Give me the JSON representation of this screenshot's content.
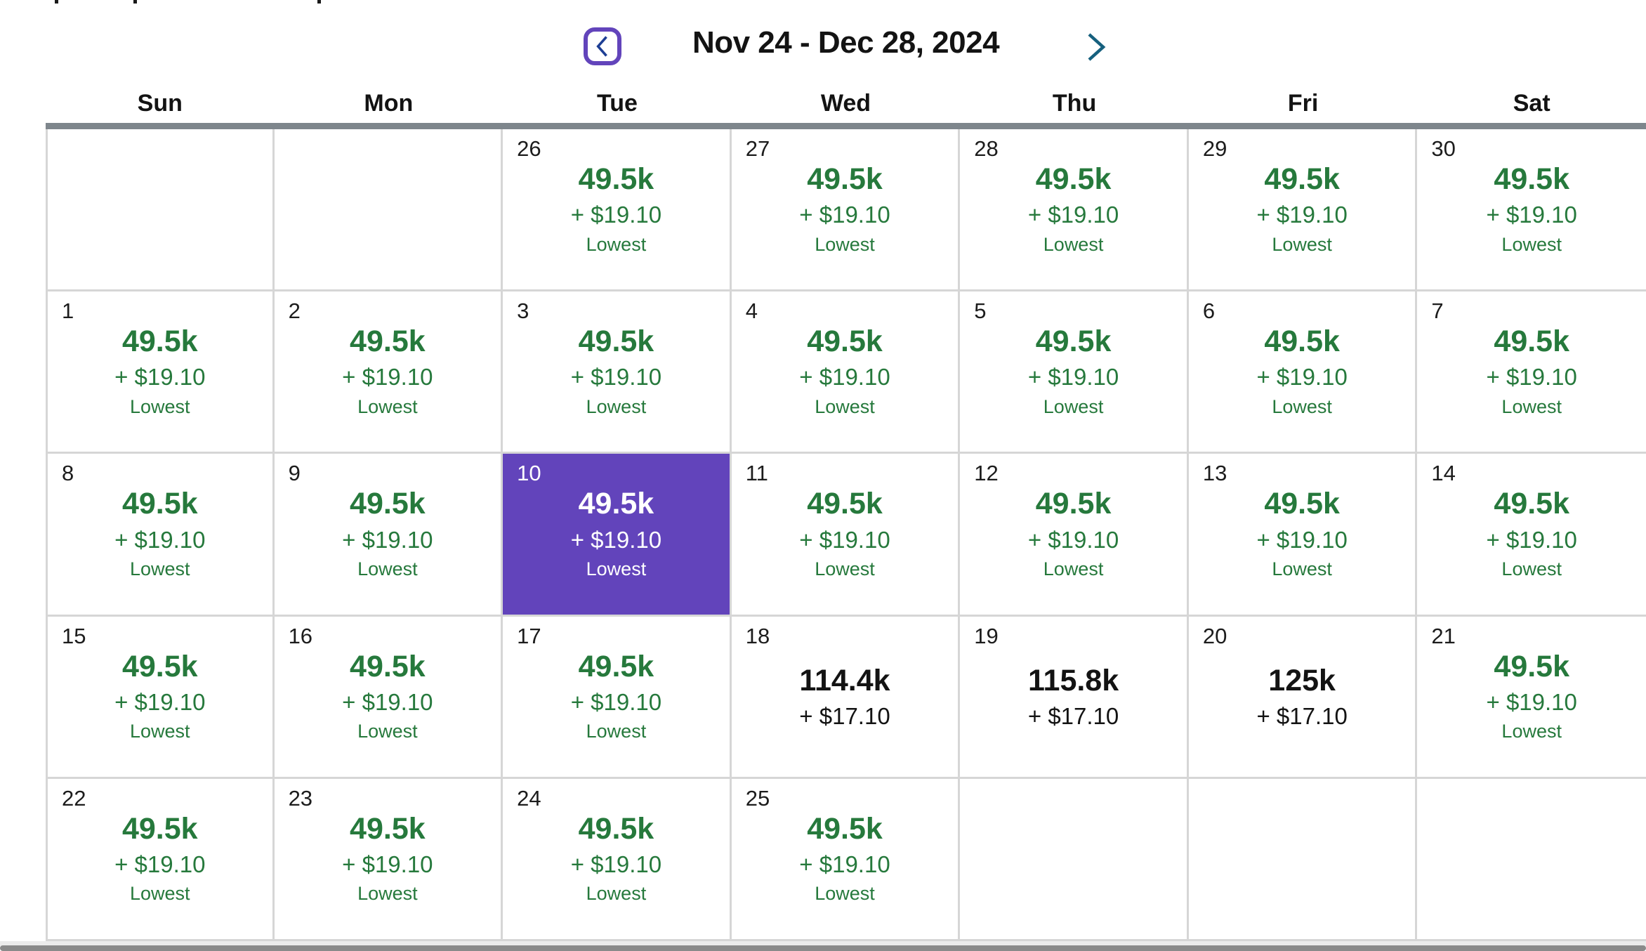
{
  "header": {
    "title": "Nov 24 - Dec 28, 2024"
  },
  "weekdays": [
    "Sun",
    "Mon",
    "Tue",
    "Wed",
    "Thu",
    "Fri",
    "Sat"
  ],
  "icons": {
    "prev": "chevron-left-icon",
    "next": "chevron-right-icon"
  },
  "colors": {
    "lowest_green": "#26793c",
    "selected_purple": "#6244bb",
    "prev_chevron": "#1d3e94",
    "next_chevron": "#16607e",
    "grid_top_bar": "#7e868c",
    "cell_border": "#d6d6d6",
    "text_dark": "#131313",
    "selected_text": "#ffffff",
    "scrollbar": "#8a8a8a",
    "scrollbar_track": "#ebebeb"
  },
  "calendar": {
    "weeks": [
      [
        null,
        null,
        {
          "day": "26",
          "miles": "49.5k",
          "fees": "+ $19.10",
          "badge": "Lowest",
          "variant": "lowest"
        },
        {
          "day": "27",
          "miles": "49.5k",
          "fees": "+ $19.10",
          "badge": "Lowest",
          "variant": "lowest"
        },
        {
          "day": "28",
          "miles": "49.5k",
          "fees": "+ $19.10",
          "badge": "Lowest",
          "variant": "lowest"
        },
        {
          "day": "29",
          "miles": "49.5k",
          "fees": "+ $19.10",
          "badge": "Lowest",
          "variant": "lowest"
        },
        {
          "day": "30",
          "miles": "49.5k",
          "fees": "+ $19.10",
          "badge": "Lowest",
          "variant": "lowest"
        }
      ],
      [
        {
          "day": "1",
          "miles": "49.5k",
          "fees": "+ $19.10",
          "badge": "Lowest",
          "variant": "lowest"
        },
        {
          "day": "2",
          "miles": "49.5k",
          "fees": "+ $19.10",
          "badge": "Lowest",
          "variant": "lowest"
        },
        {
          "day": "3",
          "miles": "49.5k",
          "fees": "+ $19.10",
          "badge": "Lowest",
          "variant": "lowest"
        },
        {
          "day": "4",
          "miles": "49.5k",
          "fees": "+ $19.10",
          "badge": "Lowest",
          "variant": "lowest"
        },
        {
          "day": "5",
          "miles": "49.5k",
          "fees": "+ $19.10",
          "badge": "Lowest",
          "variant": "lowest"
        },
        {
          "day": "6",
          "miles": "49.5k",
          "fees": "+ $19.10",
          "badge": "Lowest",
          "variant": "lowest"
        },
        {
          "day": "7",
          "miles": "49.5k",
          "fees": "+ $19.10",
          "badge": "Lowest",
          "variant": "lowest"
        }
      ],
      [
        {
          "day": "8",
          "miles": "49.5k",
          "fees": "+ $19.10",
          "badge": "Lowest",
          "variant": "lowest"
        },
        {
          "day": "9",
          "miles": "49.5k",
          "fees": "+ $19.10",
          "badge": "Lowest",
          "variant": "lowest"
        },
        {
          "day": "10",
          "miles": "49.5k",
          "fees": "+ $19.10",
          "badge": "Lowest",
          "variant": "lowest",
          "selected": true
        },
        {
          "day": "11",
          "miles": "49.5k",
          "fees": "+ $19.10",
          "badge": "Lowest",
          "variant": "lowest"
        },
        {
          "day": "12",
          "miles": "49.5k",
          "fees": "+ $19.10",
          "badge": "Lowest",
          "variant": "lowest"
        },
        {
          "day": "13",
          "miles": "49.5k",
          "fees": "+ $19.10",
          "badge": "Lowest",
          "variant": "lowest"
        },
        {
          "day": "14",
          "miles": "49.5k",
          "fees": "+ $19.10",
          "badge": "Lowest",
          "variant": "lowest"
        }
      ],
      [
        {
          "day": "15",
          "miles": "49.5k",
          "fees": "+ $19.10",
          "badge": "Lowest",
          "variant": "lowest"
        },
        {
          "day": "16",
          "miles": "49.5k",
          "fees": "+ $19.10",
          "badge": "Lowest",
          "variant": "lowest"
        },
        {
          "day": "17",
          "miles": "49.5k",
          "fees": "+ $19.10",
          "badge": "Lowest",
          "variant": "lowest"
        },
        {
          "day": "18",
          "miles": "114.4k",
          "fees": "+ $17.10",
          "variant": "standard"
        },
        {
          "day": "19",
          "miles": "115.8k",
          "fees": "+ $17.10",
          "variant": "standard"
        },
        {
          "day": "20",
          "miles": "125k",
          "fees": "+ $17.10",
          "variant": "standard"
        },
        {
          "day": "21",
          "miles": "49.5k",
          "fees": "+ $19.10",
          "badge": "Lowest",
          "variant": "lowest"
        }
      ],
      [
        {
          "day": "22",
          "miles": "49.5k",
          "fees": "+ $19.10",
          "badge": "Lowest",
          "variant": "lowest"
        },
        {
          "day": "23",
          "miles": "49.5k",
          "fees": "+ $19.10",
          "badge": "Lowest",
          "variant": "lowest"
        },
        {
          "day": "24",
          "miles": "49.5k",
          "fees": "+ $19.10",
          "badge": "Lowest",
          "variant": "lowest"
        },
        {
          "day": "25",
          "miles": "49.5k",
          "fees": "+ $19.10",
          "badge": "Lowest",
          "variant": "lowest"
        },
        null,
        null,
        null
      ]
    ]
  }
}
